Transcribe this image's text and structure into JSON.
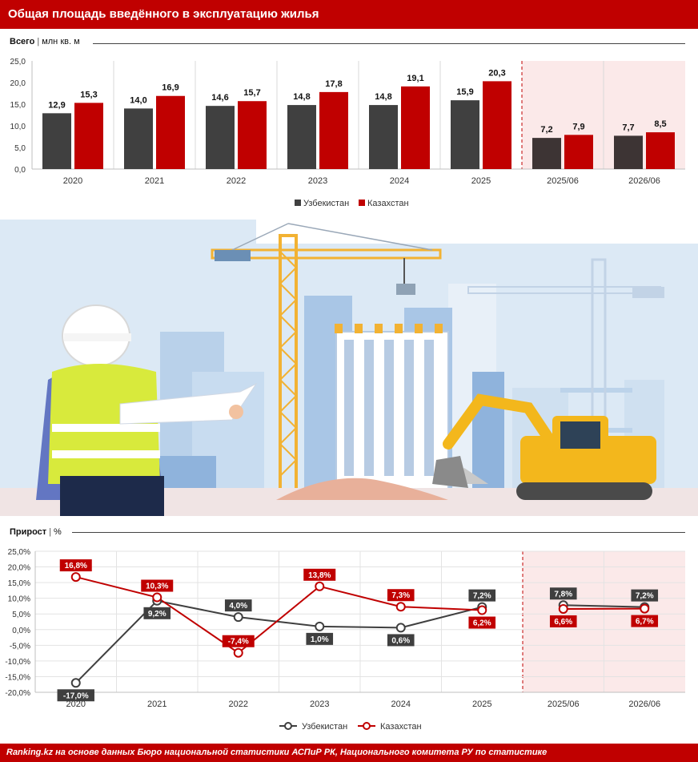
{
  "header": {
    "title": "Общая площадь введённого в эксплуатацию жилья"
  },
  "bar_section": {
    "label_bold": "Всего",
    "separator": "|",
    "label_unit": "млн кв. м"
  },
  "line_section": {
    "label_bold": "Прирост",
    "separator": "|",
    "label_unit": "%"
  },
  "footer": {
    "text": "Ranking.kz на основе данных Бюро национальной статистики АСПиР РК, Национального комитета РУ по статистике"
  },
  "colors": {
    "uzbekistan_bar": "#404040",
    "kazakhstan": "#c00000",
    "forecast_shade": "#fbe9e9",
    "header_bg": "#c00000"
  },
  "chart_data": [
    {
      "type": "bar",
      "categories": [
        "2020",
        "2021",
        "2022",
        "2023",
        "2024",
        "2025",
        "2025/06",
        "2026/06"
      ],
      "series": [
        {
          "name": "Узбекистан",
          "values": [
            12.9,
            14.0,
            14.6,
            14.8,
            14.8,
            15.9,
            7.2,
            7.7
          ],
          "labels": [
            "12,9",
            "14,0",
            "14,6",
            "14,8",
            "14,8",
            "15,9",
            "7,2",
            "7,7"
          ]
        },
        {
          "name": "Казахстан",
          "values": [
            15.3,
            16.9,
            15.7,
            17.8,
            19.1,
            20.3,
            7.9,
            8.5
          ],
          "labels": [
            "15,3",
            "16,9",
            "15,7",
            "17,8",
            "19,1",
            "20,3",
            "7,9",
            "8,5"
          ]
        }
      ],
      "y_ticks": [
        "0,0",
        "5,0",
        "10,0",
        "15,0",
        "20,0",
        "25,0"
      ],
      "ylim": [
        0,
        25
      ],
      "legend_position": "bottom",
      "shaded_categories": [
        "2025/06",
        "2026/06"
      ]
    },
    {
      "type": "line",
      "categories": [
        "2020",
        "2021",
        "2022",
        "2023",
        "2024",
        "2025",
        "2025/06",
        "2026/06"
      ],
      "series": [
        {
          "name": "Узбекистан",
          "values": [
            -17.0,
            9.2,
            4.0,
            1.0,
            0.6,
            7.2,
            7.8,
            7.2
          ],
          "labels": [
            "-17,0%",
            "9,2%",
            "4,0%",
            "1,0%",
            "0,6%",
            "7,2%",
            "7,8%",
            "7,2%"
          ]
        },
        {
          "name": "Казахстан",
          "values": [
            16.8,
            10.3,
            -7.4,
            13.8,
            7.3,
            6.2,
            6.6,
            6.7
          ],
          "labels": [
            "16,8%",
            "10,3%",
            "-7,4%",
            "13,8%",
            "7,3%",
            "6,2%",
            "6,6%",
            "6,7%"
          ]
        }
      ],
      "y_ticks": [
        "-20,0%",
        "-15,0%",
        "-10,0%",
        "-5,0%",
        "0,0%",
        "5,0%",
        "10,0%",
        "15,0%",
        "20,0%",
        "25,0%"
      ],
      "ylim": [
        -20,
        25
      ],
      "legend_position": "bottom",
      "shaded_categories": [
        "2025/06",
        "2026/06"
      ]
    }
  ]
}
